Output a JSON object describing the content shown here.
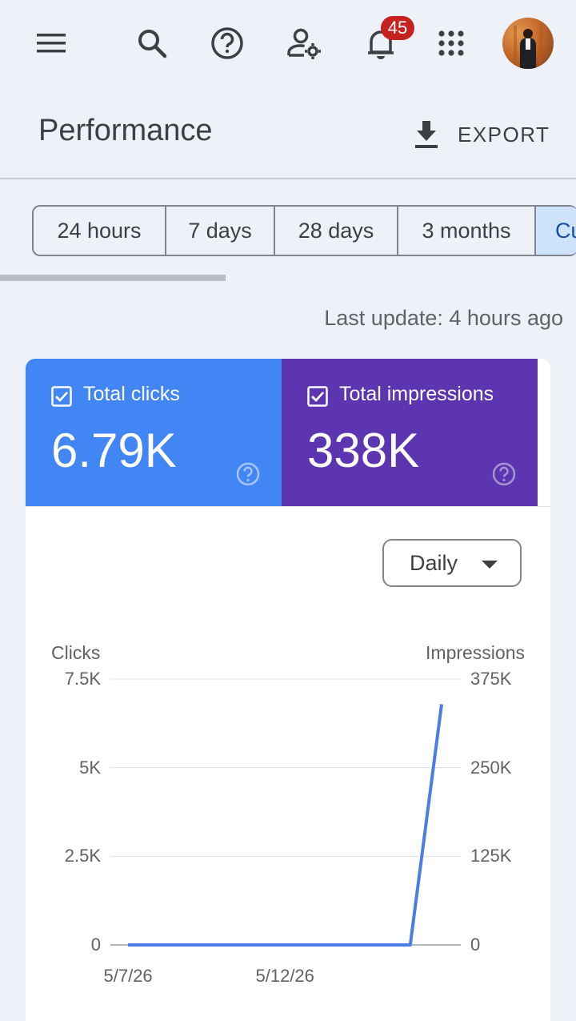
{
  "topbar": {
    "icons": [
      "menu-icon",
      "search-icon",
      "help-icon",
      "manage-users-icon",
      "notifications-icon",
      "apps-icon"
    ],
    "notification_count": "45"
  },
  "header": {
    "title": "Performance",
    "export_label": "EXPORT"
  },
  "tabs": [
    "24 hours",
    "7 days",
    "28 days",
    "3 months",
    "Cu"
  ],
  "last_update": "Last update: 4 hours ago",
  "metrics": {
    "clicks": {
      "label": "Total clicks",
      "value": "6.79K"
    },
    "impressions": {
      "label": "Total impressions",
      "value": "338K"
    }
  },
  "granularity": {
    "selected": "Daily"
  },
  "colors": {
    "clicks": "#4285f4",
    "impressions": "#5e35b1",
    "line": "#4a7ee6"
  },
  "chart_data": {
    "type": "line",
    "y_left_label": "Clicks",
    "y_right_label": "Impressions",
    "y_left_ticks": [
      "7.5K",
      "5K",
      "2.5K",
      "0"
    ],
    "y_right_ticks": [
      "375K",
      "250K",
      "125K",
      "0"
    ],
    "x_tick_labels": [
      "5/7/26",
      "5/12/26"
    ],
    "ylim_left": [
      0,
      7500
    ],
    "ylim_right": [
      0,
      375000
    ],
    "grid": true,
    "series": [
      {
        "name": "Clicks",
        "x": [
          "5/7/26",
          "5/8/26",
          "5/9/26",
          "5/10/26",
          "5/11/26",
          "5/12/26",
          "5/13/26",
          "5/14/26",
          "5/15/26",
          "5/16/26",
          "5/17/26"
        ],
        "values": [
          0,
          0,
          0,
          0,
          0,
          0,
          0,
          0,
          0,
          0,
          6790
        ]
      }
    ]
  }
}
